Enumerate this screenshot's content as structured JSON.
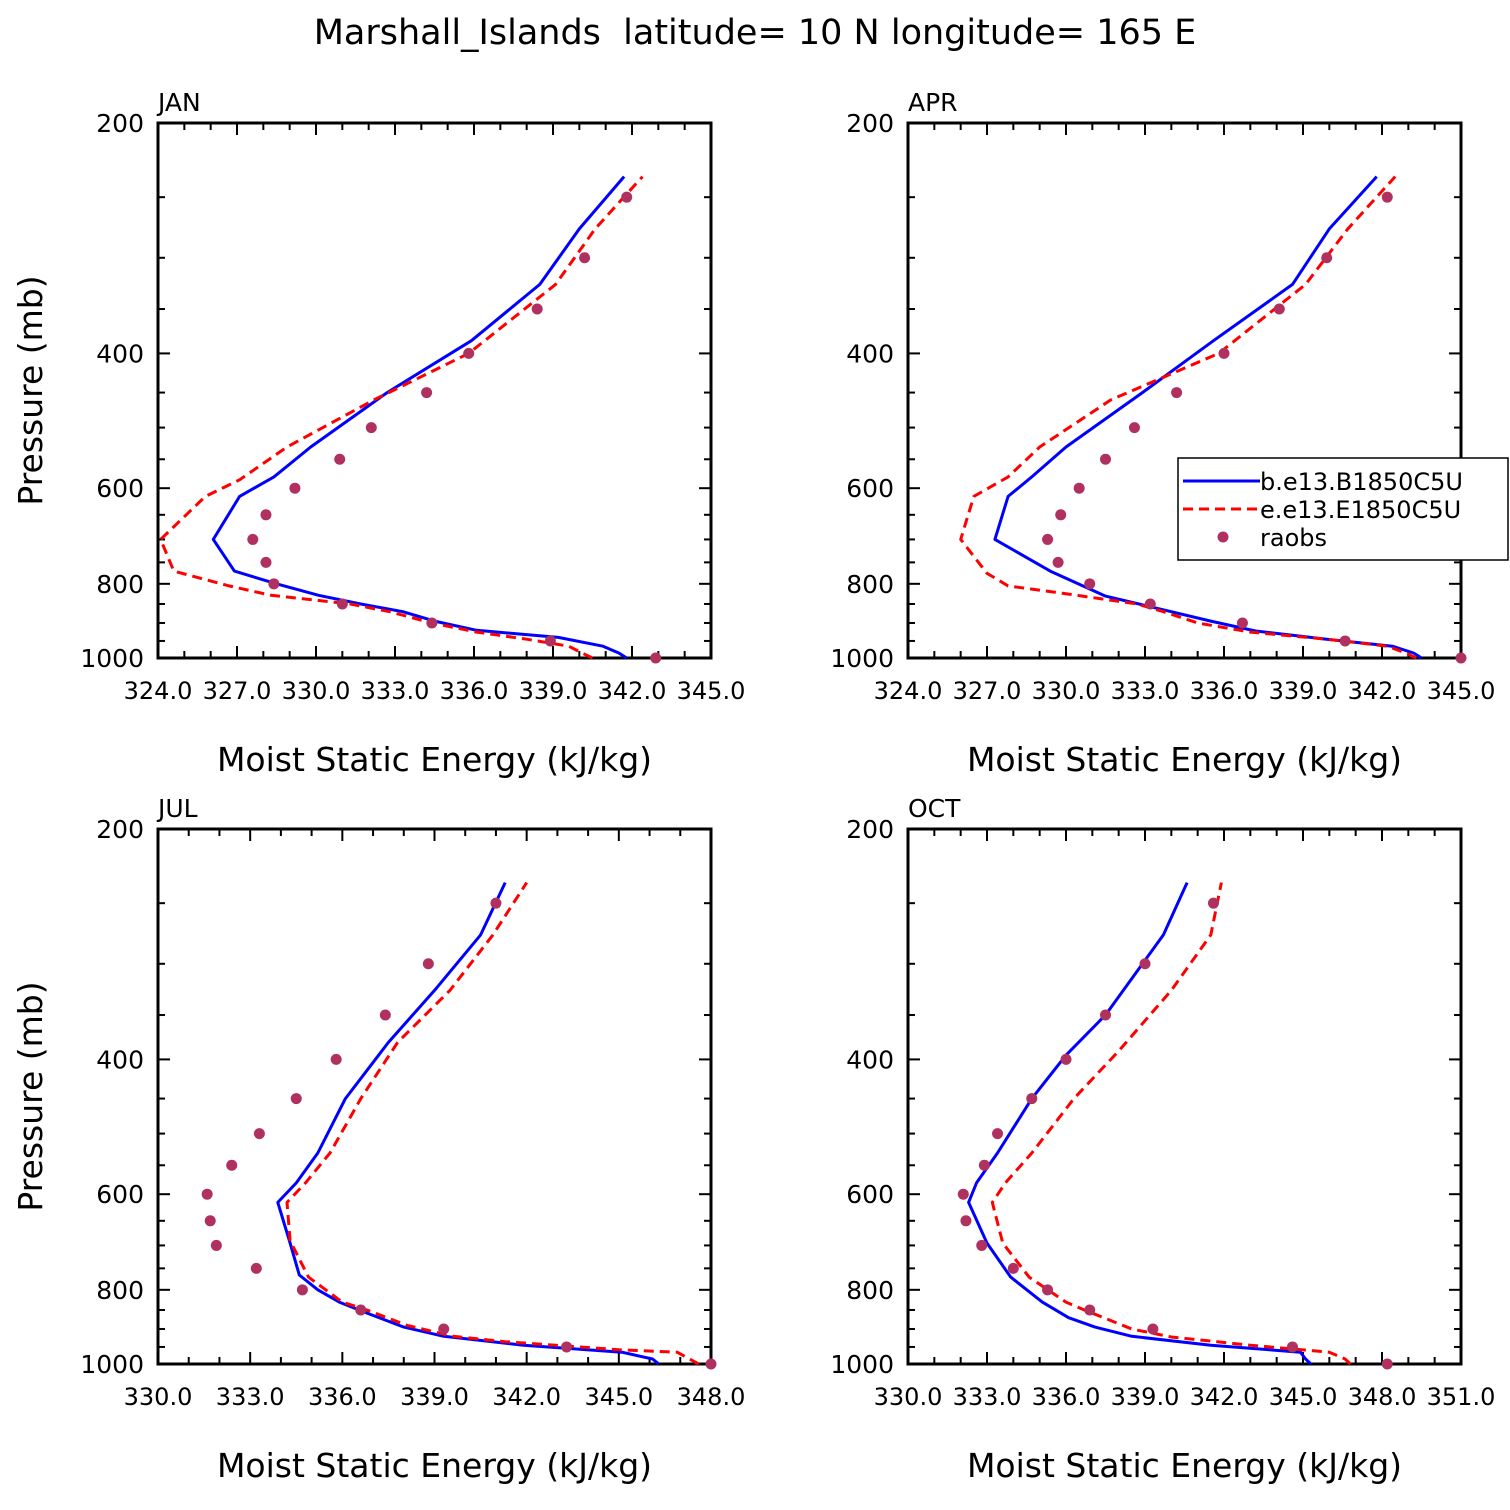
{
  "title": "Marshall_Islands  latitude= 10 N longitude= 165 E",
  "ylabel": "Pressure (mb)",
  "xlabel": "Moist Static Energy (kJ/kg)",
  "y_ticks": [
    "200",
    "400",
    "600",
    "800",
    "1000"
  ],
  "legend": {
    "items": [
      {
        "label": "b.e13.B1850C5U",
        "color": "#0000ff",
        "style": "solid"
      },
      {
        "label": "e.e13.E1850C5U",
        "color": "#ff0000",
        "style": "dashed"
      },
      {
        "label": "raobs",
        "color": "#b03060",
        "style": "dot"
      }
    ]
  },
  "colors": {
    "model_b": "#0000ff",
    "model_e": "#ff0000",
    "raobs": "#b03060"
  },
  "chart_data": [
    {
      "panel": "JAN",
      "type": "line",
      "xlim": [
        324.0,
        345.0
      ],
      "ylim": [
        1000,
        200
      ],
      "y_log": true,
      "x_tick_labels": [
        "324.0",
        "327.0",
        "330.0",
        "333.0",
        "336.0",
        "339.0",
        "342.0",
        "345.0"
      ],
      "series": [
        {
          "name": "b.e13.B1850C5U",
          "points": [
            [
              341.8,
              1000
            ],
            [
              341.5,
              985
            ],
            [
              340.9,
              965
            ],
            [
              339.2,
              940
            ],
            [
              336.1,
              920
            ],
            [
              334.5,
              895
            ],
            [
              333.3,
              870
            ],
            [
              331.7,
              850
            ],
            [
              330.1,
              828
            ],
            [
              328.5,
              800
            ],
            [
              326.9,
              770
            ],
            [
              326.1,
              700
            ],
            [
              327.1,
              615
            ],
            [
              328.4,
              580
            ],
            [
              329.8,
              530
            ],
            [
              332.7,
              450
            ],
            [
              335.9,
              385
            ],
            [
              338.5,
              325
            ],
            [
              340.0,
              275
            ],
            [
              341.7,
              235
            ]
          ]
        },
        {
          "name": "e.e13.E1850C5U",
          "points": [
            [
              340.5,
              1000
            ],
            [
              340.1,
              985
            ],
            [
              339.6,
              965
            ],
            [
              338.0,
              945
            ],
            [
              336.1,
              925
            ],
            [
              334.4,
              900
            ],
            [
              332.8,
              870
            ],
            [
              331.3,
              850
            ],
            [
              328.3,
              828
            ],
            [
              326.7,
              805
            ],
            [
              324.6,
              770
            ],
            [
              324.1,
              700
            ],
            [
              325.8,
              615
            ],
            [
              327.1,
              585
            ],
            [
              328.9,
              530
            ],
            [
              332.2,
              460
            ],
            [
              335.8,
              400
            ],
            [
              339.1,
              325
            ],
            [
              340.6,
              275
            ],
            [
              342.4,
              235
            ]
          ]
        },
        {
          "name": "raobs",
          "points": [
            [
              342.9,
              1000
            ],
            [
              338.9,
              950
            ],
            [
              334.4,
              900
            ],
            [
              331.0,
              850
            ],
            [
              328.4,
              800
            ],
            [
              328.1,
              750
            ],
            [
              327.6,
              700
            ],
            [
              328.1,
              650
            ],
            [
              329.2,
              600
            ],
            [
              330.9,
              550
            ],
            [
              332.1,
              500
            ],
            [
              334.2,
              450
            ],
            [
              335.8,
              400
            ],
            [
              338.4,
              350
            ],
            [
              340.2,
              300
            ],
            [
              341.8,
              250
            ]
          ]
        }
      ]
    },
    {
      "panel": "APR",
      "type": "line",
      "xlim": [
        324.0,
        345.0
      ],
      "ylim": [
        1000,
        200
      ],
      "y_log": true,
      "x_tick_labels": [
        "324.0",
        "327.0",
        "330.0",
        "333.0",
        "336.0",
        "339.0",
        "342.0",
        "345.0"
      ],
      "series": [
        {
          "name": "b.e13.B1850C5U",
          "points": [
            [
              343.5,
              1000
            ],
            [
              343.2,
              985
            ],
            [
              342.4,
              965
            ],
            [
              339.9,
              945
            ],
            [
              337.2,
              922
            ],
            [
              335.5,
              895
            ],
            [
              334.0,
              870
            ],
            [
              331.5,
              830
            ],
            [
              329.4,
              770
            ],
            [
              327.3,
              700
            ],
            [
              327.8,
              615
            ],
            [
              328.7,
              580
            ],
            [
              330.0,
              530
            ],
            [
              332.9,
              450
            ],
            [
              335.6,
              385
            ],
            [
              338.6,
              325
            ],
            [
              340.0,
              275
            ],
            [
              341.8,
              235
            ]
          ]
        },
        {
          "name": "e.e13.E1850C5U",
          "points": [
            [
              343.3,
              1000
            ],
            [
              342.9,
              985
            ],
            [
              342.2,
              965
            ],
            [
              339.9,
              945
            ],
            [
              337.0,
              925
            ],
            [
              335.0,
              900
            ],
            [
              333.7,
              870
            ],
            [
              332.7,
              850
            ],
            [
              330.1,
              825
            ],
            [
              327.8,
              805
            ],
            [
              327.0,
              775
            ],
            [
              326.0,
              700
            ],
            [
              326.5,
              615
            ],
            [
              327.8,
              580
            ],
            [
              329.0,
              530
            ],
            [
              331.7,
              460
            ],
            [
              335.8,
              400
            ],
            [
              339.1,
              325
            ],
            [
              340.7,
              275
            ],
            [
              342.5,
              235
            ]
          ]
        },
        {
          "name": "raobs",
          "points": [
            [
              345.0,
              1000
            ],
            [
              340.6,
              950
            ],
            [
              336.7,
              900
            ],
            [
              333.2,
              850
            ],
            [
              330.9,
              800
            ],
            [
              329.7,
              750
            ],
            [
              329.3,
              700
            ],
            [
              329.8,
              650
            ],
            [
              330.5,
              600
            ],
            [
              331.5,
              550
            ],
            [
              332.6,
              500
            ],
            [
              334.2,
              450
            ],
            [
              336.0,
              400
            ],
            [
              338.1,
              350
            ],
            [
              339.9,
              300
            ],
            [
              342.2,
              250
            ]
          ]
        }
      ]
    },
    {
      "panel": "JUL",
      "type": "line",
      "xlim": [
        330.0,
        348.0
      ],
      "ylim": [
        1000,
        200
      ],
      "y_log": true,
      "x_tick_labels": [
        "330.0",
        "333.0",
        "336.0",
        "339.0",
        "342.0",
        "345.0",
        "348.0"
      ],
      "series": [
        {
          "name": "b.e13.B1850C5U",
          "points": [
            [
              346.3,
              1000
            ],
            [
              346.1,
              985
            ],
            [
              345.1,
              965
            ],
            [
              341.9,
              945
            ],
            [
              339.3,
              920
            ],
            [
              338.0,
              895
            ],
            [
              336.7,
              855
            ],
            [
              335.9,
              830
            ],
            [
              335.2,
              800
            ],
            [
              334.6,
              765
            ],
            [
              334.3,
              695
            ],
            [
              333.9,
              615
            ],
            [
              334.5,
              580
            ],
            [
              335.2,
              530
            ],
            [
              336.1,
              450
            ],
            [
              337.5,
              380
            ],
            [
              339.0,
              325
            ],
            [
              340.5,
              275
            ],
            [
              341.3,
              235
            ]
          ]
        },
        {
          "name": "e.e13.E1850C5U",
          "points": [
            [
              347.6,
              1000
            ],
            [
              347.3,
              985
            ],
            [
              346.9,
              965
            ],
            [
              345.0,
              958
            ],
            [
              343.7,
              950
            ],
            [
              341.3,
              935
            ],
            [
              339.6,
              920
            ],
            [
              338.1,
              890
            ],
            [
              336.8,
              850
            ],
            [
              336.0,
              830
            ],
            [
              334.9,
              770
            ],
            [
              334.3,
              690
            ],
            [
              334.2,
              615
            ],
            [
              334.8,
              580
            ],
            [
              335.6,
              530
            ],
            [
              336.6,
              450
            ],
            [
              337.8,
              380
            ],
            [
              339.5,
              325
            ],
            [
              340.9,
              275
            ],
            [
              342.0,
              235
            ]
          ]
        },
        {
          "name": "raobs",
          "points": [
            [
              348.0,
              1000
            ],
            [
              343.3,
              950
            ],
            [
              339.3,
              900
            ],
            [
              336.6,
              850
            ],
            [
              334.7,
              800
            ],
            [
              333.2,
              750
            ],
            [
              331.9,
              700
            ],
            [
              331.7,
              650
            ],
            [
              331.6,
              600
            ],
            [
              332.4,
              550
            ],
            [
              333.3,
              500
            ],
            [
              334.5,
              450
            ],
            [
              335.8,
              400
            ],
            [
              337.4,
              350
            ],
            [
              338.8,
              300
            ],
            [
              341.0,
              250
            ]
          ]
        }
      ]
    },
    {
      "panel": "OCT",
      "type": "line",
      "xlim": [
        330.0,
        351.0
      ],
      "ylim": [
        1000,
        200
      ],
      "y_log": true,
      "x_tick_labels": [
        "330.0",
        "333.0",
        "336.0",
        "339.0",
        "342.0",
        "345.0",
        "348.0",
        "351.0"
      ],
      "series": [
        {
          "name": "b.e13.B1850C5U",
          "points": [
            [
              345.3,
              1000
            ],
            [
              345.1,
              985
            ],
            [
              344.9,
              965
            ],
            [
              341.5,
              945
            ],
            [
              338.5,
              920
            ],
            [
              337.1,
              895
            ],
            [
              336.1,
              870
            ],
            [
              335.1,
              830
            ],
            [
              333.9,
              770
            ],
            [
              333.0,
              695
            ],
            [
              332.3,
              615
            ],
            [
              332.6,
              580
            ],
            [
              333.4,
              530
            ],
            [
              334.7,
              450
            ],
            [
              336.0,
              395
            ],
            [
              337.5,
              350
            ],
            [
              339.7,
              275
            ],
            [
              340.6,
              235
            ]
          ]
        },
        {
          "name": "e.e13.E1850C5U",
          "points": [
            [
              346.8,
              1000
            ],
            [
              346.6,
              985
            ],
            [
              346.0,
              965
            ],
            [
              343.0,
              945
            ],
            [
              340.0,
              922
            ],
            [
              338.5,
              900
            ],
            [
              336.7,
              850
            ],
            [
              336.0,
              830
            ],
            [
              334.6,
              770
            ],
            [
              333.6,
              695
            ],
            [
              333.2,
              615
            ],
            [
              333.7,
              580
            ],
            [
              334.7,
              530
            ],
            [
              336.3,
              450
            ],
            [
              338.0,
              390
            ],
            [
              340.0,
              325
            ],
            [
              341.5,
              275
            ],
            [
              341.9,
              235
            ]
          ]
        },
        {
          "name": "raobs",
          "points": [
            [
              348.2,
              1000
            ],
            [
              344.6,
              950
            ],
            [
              339.3,
              900
            ],
            [
              336.9,
              850
            ],
            [
              335.3,
              800
            ],
            [
              334.0,
              750
            ],
            [
              332.8,
              700
            ],
            [
              332.2,
              650
            ],
            [
              332.1,
              600
            ],
            [
              332.9,
              550
            ],
            [
              333.4,
              500
            ],
            [
              334.7,
              450
            ],
            [
              336.0,
              400
            ],
            [
              337.5,
              350
            ],
            [
              339.0,
              300
            ],
            [
              341.6,
              250
            ]
          ]
        }
      ]
    }
  ]
}
